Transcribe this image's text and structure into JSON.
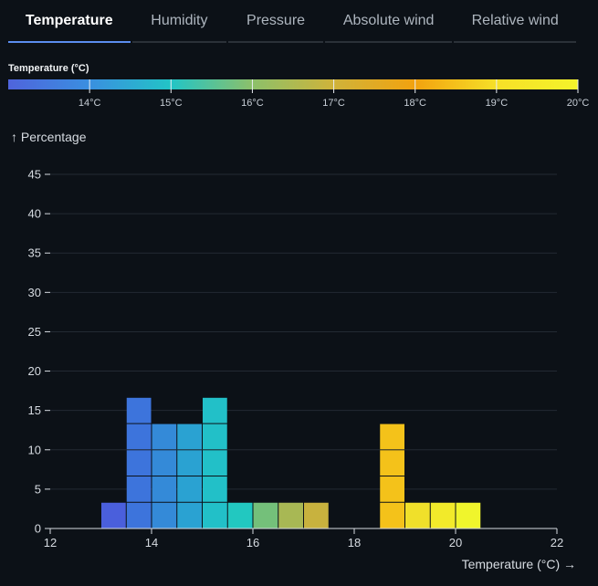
{
  "tabs": [
    {
      "label": "Temperature",
      "active": true
    },
    {
      "label": "Humidity",
      "active": false
    },
    {
      "label": "Pressure",
      "active": false
    },
    {
      "label": "Absolute wind",
      "active": false
    },
    {
      "label": "Relative wind",
      "active": false
    }
  ],
  "legend": {
    "title": "Temperature (°C)",
    "domain": [
      13,
      20
    ],
    "ticks": [
      {
        "value": 14,
        "label": "14°C"
      },
      {
        "value": 15,
        "label": "15°C"
      },
      {
        "value": 16,
        "label": "16°C"
      },
      {
        "value": 17,
        "label": "17°C"
      },
      {
        "value": 18,
        "label": "18°C"
      },
      {
        "value": 19,
        "label": "19°C"
      },
      {
        "value": 20,
        "label": "20°C"
      }
    ],
    "colors": [
      "#4f64dc",
      "#3a8fe0",
      "#22c4c6",
      "#8cc06a",
      "#cfb33a",
      "#f2a20f",
      "#f6e028",
      "#f4f32a"
    ]
  },
  "chart_data": {
    "type": "bar",
    "xlabel": "Temperature (°C) →",
    "ylabel": "↑ Percentage",
    "xlim": [
      12,
      22
    ],
    "ylim": [
      0,
      45
    ],
    "xticks": [
      12,
      14,
      16,
      18,
      20,
      22
    ],
    "yticks": [
      0,
      5,
      10,
      15,
      20,
      25,
      30,
      35,
      40,
      45
    ],
    "grid": true,
    "bins": [
      {
        "x0": 13.0,
        "x1": 13.5,
        "count": 1,
        "color": "#4a5fdc"
      },
      {
        "x0": 13.5,
        "x1": 14.0,
        "count": 5,
        "color": "#3d74dc"
      },
      {
        "x0": 14.0,
        "x1": 14.5,
        "count": 4,
        "color": "#348ad8"
      },
      {
        "x0": 14.5,
        "x1": 15.0,
        "count": 4,
        "color": "#2aa2d2"
      },
      {
        "x0": 15.0,
        "x1": 15.5,
        "count": 5,
        "color": "#22c0c8"
      },
      {
        "x0": 15.5,
        "x1": 16.0,
        "count": 1,
        "color": "#22c8c0"
      },
      {
        "x0": 16.0,
        "x1": 16.5,
        "count": 1,
        "color": "#74c07a"
      },
      {
        "x0": 16.5,
        "x1": 17.0,
        "count": 1,
        "color": "#a8b854"
      },
      {
        "x0": 17.0,
        "x1": 17.5,
        "count": 1,
        "color": "#c8b23e"
      },
      {
        "x0": 18.5,
        "x1": 19.0,
        "count": 4,
        "color": "#f4c21a"
      },
      {
        "x0": 19.0,
        "x1": 19.5,
        "count": 1,
        "color": "#f0e02a"
      },
      {
        "x0": 19.5,
        "x1": 20.0,
        "count": 1,
        "color": "#f2ea2a"
      },
      {
        "x0": 20.0,
        "x1": 20.5,
        "count": 1,
        "color": "#f0f52c"
      }
    ],
    "cell_value": 3.333
  }
}
